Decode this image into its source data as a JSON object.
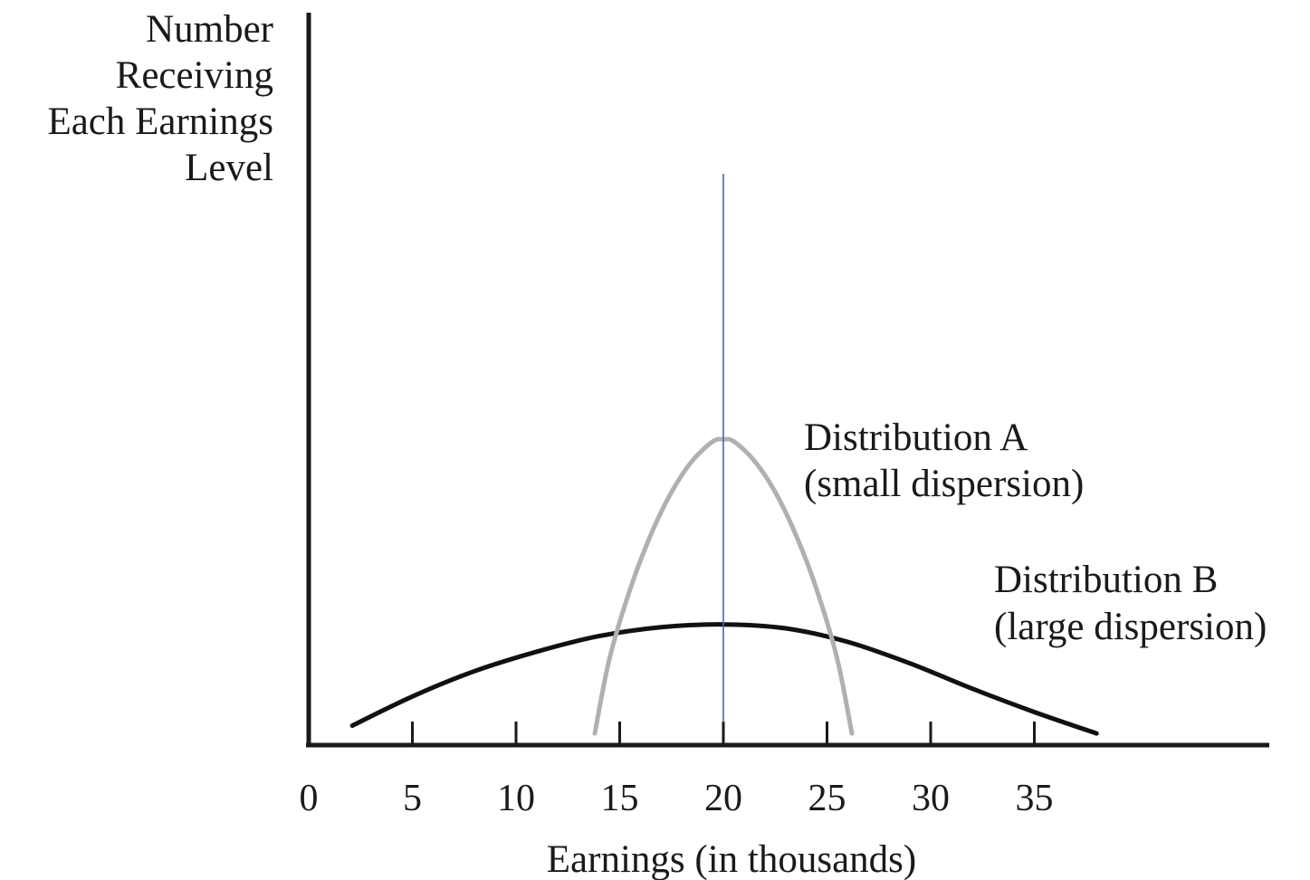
{
  "chart_data": {
    "type": "line",
    "title": "",
    "xlabel": "Earnings (in thousands)",
    "ylabel_lines": [
      "Number",
      "Receiving",
      "Each Earnings",
      "Level"
    ],
    "x_ticks": [
      0,
      5,
      10,
      15,
      20,
      25,
      30,
      35
    ],
    "xlim": [
      0,
      46
    ],
    "ylim": [
      0,
      100
    ],
    "grid": false,
    "mean_line": {
      "x": 20,
      "color": "#3a6fb0"
    },
    "series": [
      {
        "name": "Distribution A",
        "caption": "(small dispersion)",
        "color": "#b0b0b0",
        "x": [
          13.8,
          14.5,
          15.5,
          16.5,
          17.5,
          18.5,
          19.5,
          20,
          20.5,
          21.5,
          22.5,
          23.5,
          24.5,
          25.5,
          26.2
        ],
        "y": [
          3,
          22,
          40,
          54,
          65,
          73,
          78,
          78.5,
          78,
          73,
          65,
          54,
          40,
          22,
          3
        ]
      },
      {
        "name": "Distribution B",
        "caption": "(large dispersion)",
        "color": "#111111",
        "x": [
          2.1,
          5,
          8,
          11,
          14,
          17,
          20,
          23,
          26,
          29,
          32,
          35,
          38
        ],
        "y": [
          5,
          12.5,
          19,
          24,
          28,
          30.3,
          31,
          30,
          26.5,
          21,
          14.5,
          8.5,
          3
        ]
      }
    ]
  }
}
